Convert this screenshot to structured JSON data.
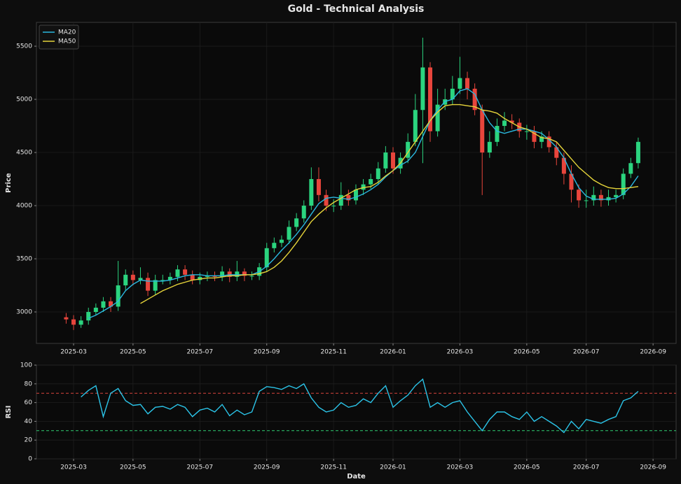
{
  "chart_data": [
    {
      "type": "candlestick",
      "title": "Gold - Technical Analysis",
      "y_label": "Price",
      "categories": [
        null,
        "2025-03",
        null,
        null,
        null,
        null,
        null,
        null,
        null,
        "2025-05",
        null,
        null,
        null,
        null,
        null,
        null,
        null,
        null,
        "2025-07",
        null,
        null,
        null,
        null,
        null,
        null,
        null,
        null,
        "2025-09",
        null,
        null,
        null,
        null,
        null,
        null,
        null,
        null,
        "2025-11",
        null,
        null,
        null,
        null,
        null,
        null,
        null,
        "2026-01",
        null,
        null,
        null,
        null,
        null,
        null,
        null,
        null,
        "2026-03",
        null,
        null,
        null,
        null,
        null,
        null,
        null,
        null,
        "2026-05",
        null,
        null,
        null,
        null,
        null,
        null,
        null,
        "2026-07",
        null,
        null,
        null,
        null,
        null,
        null,
        null,
        null,
        "2026-09"
      ],
      "open": [
        2950,
        2930,
        2880,
        2920,
        3000,
        3040,
        3100,
        3050,
        3250,
        3350,
        3300,
        3320,
        3200,
        3300,
        3300,
        3330,
        3400,
        3350,
        3300,
        3330,
        3340,
        3330,
        3380,
        3330,
        3380,
        3340,
        3340,
        3420,
        3600,
        3650,
        3680,
        3800,
        3880,
        4000,
        4250,
        4100,
        4000,
        4000,
        4100,
        4050,
        4150,
        4200,
        4250,
        4350,
        4500,
        4350,
        4450,
        4600,
        4900,
        5300,
        4700,
        4950,
        5000,
        5100,
        5200,
        5100,
        4900,
        4500,
        4600,
        4750,
        4800,
        4780,
        4700,
        4700,
        4600,
        4650,
        4550,
        4450,
        4300,
        4150,
        4050,
        4050,
        4100,
        4050,
        4080,
        4100,
        4300,
        4400,
        null,
        null
      ],
      "high": [
        2990,
        2970,
        2960,
        3040,
        3080,
        3140,
        3140,
        3480,
        3400,
        3390,
        3420,
        3370,
        3350,
        3350,
        3370,
        3440,
        3440,
        3390,
        3370,
        3380,
        3380,
        3430,
        3410,
        3480,
        3410,
        3380,
        3460,
        3650,
        3700,
        3720,
        3860,
        3930,
        4050,
        4360,
        4360,
        4150,
        4060,
        4220,
        4150,
        4200,
        4250,
        4300,
        4410,
        4560,
        4550,
        4500,
        4680,
        5050,
        5580,
        5350,
        5100,
        5100,
        5220,
        5400,
        5260,
        5150,
        4950,
        4700,
        4820,
        4880,
        4860,
        4820,
        4760,
        4750,
        4700,
        4700,
        4600,
        4500,
        4380,
        4200,
        4150,
        4180,
        4150,
        4150,
        4150,
        4350,
        4450,
        4640,
        null,
        null
      ],
      "low": [
        2890,
        2830,
        2850,
        2880,
        2970,
        3000,
        3000,
        3010,
        3200,
        3250,
        3260,
        3150,
        3160,
        3260,
        3260,
        3290,
        3300,
        3260,
        3260,
        3290,
        3290,
        3290,
        3280,
        3290,
        3290,
        3300,
        3300,
        3380,
        3560,
        3610,
        3640,
        3760,
        3840,
        3960,
        4040,
        3950,
        3940,
        3960,
        4000,
        4010,
        4100,
        4160,
        4200,
        4310,
        4300,
        4300,
        4400,
        4560,
        4400,
        4600,
        4650,
        4900,
        4950,
        5050,
        5000,
        4850,
        4100,
        4450,
        4560,
        4700,
        4720,
        4640,
        4620,
        4540,
        4540,
        4500,
        4380,
        4200,
        4030,
        3980,
        3980,
        4000,
        3990,
        4000,
        4030,
        4060,
        4260,
        4350,
        null,
        null
      ],
      "close": [
        2930,
        2880,
        2920,
        3000,
        3040,
        3100,
        3050,
        3250,
        3350,
        3300,
        3320,
        3200,
        3300,
        3300,
        3330,
        3400,
        3350,
        3300,
        3330,
        3340,
        3330,
        3380,
        3330,
        3380,
        3340,
        3340,
        3420,
        3600,
        3650,
        3680,
        3800,
        3880,
        4000,
        4250,
        4100,
        4000,
        4000,
        4100,
        4050,
        4150,
        4200,
        4250,
        4350,
        4500,
        4350,
        4450,
        4600,
        4900,
        5300,
        4700,
        4950,
        5000,
        5100,
        5200,
        5100,
        4900,
        4500,
        4600,
        4750,
        4800,
        4780,
        4700,
        4700,
        4600,
        4650,
        4550,
        4450,
        4300,
        4150,
        4050,
        4050,
        4100,
        4050,
        4080,
        4100,
        4300,
        4400,
        4600,
        null,
        null
      ],
      "up_color": "#2bd47f",
      "down_color": "#e8453c",
      "series": [
        {
          "name": "MA20",
          "color": "#2bb8e0",
          "values": [
            null,
            null,
            null,
            2940,
            2970,
            3010,
            3050,
            3100,
            3200,
            3260,
            3300,
            3290,
            3290,
            3290,
            3300,
            3320,
            3340,
            3350,
            3350,
            3340,
            3340,
            3340,
            3350,
            3350,
            3350,
            3350,
            3380,
            3430,
            3500,
            3580,
            3650,
            3730,
            3820,
            3920,
            4020,
            4070,
            4080,
            4070,
            4060,
            4080,
            4110,
            4150,
            4200,
            4270,
            4330,
            4380,
            4420,
            4500,
            4650,
            4800,
            4900,
            4980,
            5000,
            5080,
            5100,
            5050,
            4900,
            4780,
            4700,
            4680,
            4700,
            4720,
            4720,
            4700,
            4680,
            4620,
            4550,
            4450,
            4300,
            4170,
            4090,
            4060,
            4060,
            4060,
            4070,
            4110,
            4180,
            4280,
            null,
            null
          ]
        },
        {
          "name": "MA50",
          "color": "#e6d43a",
          "values": [
            null,
            null,
            null,
            null,
            null,
            null,
            null,
            null,
            null,
            null,
            3080,
            3120,
            3160,
            3200,
            3230,
            3260,
            3280,
            3300,
            3310,
            3320,
            3320,
            3330,
            3340,
            3340,
            3350,
            3350,
            3360,
            3380,
            3420,
            3480,
            3560,
            3650,
            3750,
            3850,
            3920,
            3980,
            4030,
            4070,
            4110,
            4150,
            4170,
            4180,
            4220,
            4280,
            4330,
            4400,
            4500,
            4600,
            4700,
            4800,
            4880,
            4940,
            4950,
            4950,
            4940,
            4930,
            4900,
            4890,
            4870,
            4820,
            4780,
            4740,
            4720,
            4680,
            4640,
            4630,
            4600,
            4520,
            4440,
            4360,
            4300,
            4240,
            4200,
            4170,
            4160,
            4160,
            4170,
            4180,
            null,
            null
          ]
        }
      ],
      "ylim": [
        2704,
        5724
      ],
      "yticks": [
        3000,
        3500,
        4000,
        4500,
        5000,
        5500
      ],
      "grid": true,
      "legend": "upper left"
    },
    {
      "type": "line",
      "x_label": "Date",
      "y_label": "RSI",
      "categories": [
        null,
        "2025-03",
        null,
        null,
        null,
        null,
        null,
        null,
        null,
        "2025-05",
        null,
        null,
        null,
        null,
        null,
        null,
        null,
        null,
        "2025-07",
        null,
        null,
        null,
        null,
        null,
        null,
        null,
        null,
        "2025-09",
        null,
        null,
        null,
        null,
        null,
        null,
        null,
        null,
        "2025-11",
        null,
        null,
        null,
        null,
        null,
        null,
        null,
        "2026-01",
        null,
        null,
        null,
        null,
        null,
        null,
        null,
        null,
        "2026-03",
        null,
        null,
        null,
        null,
        null,
        null,
        null,
        null,
        "2026-05",
        null,
        null,
        null,
        null,
        null,
        null,
        null,
        "2026-07",
        null,
        null,
        null,
        null,
        null,
        null,
        null,
        null,
        "2026-09"
      ],
      "color": "#2bc4e8",
      "values": [
        null,
        null,
        66,
        73,
        78,
        45,
        70,
        75,
        62,
        57,
        58,
        48,
        55,
        56,
        53,
        58,
        55,
        45,
        52,
        54,
        50,
        58,
        46,
        52,
        47,
        50,
        72,
        77,
        76,
        74,
        78,
        75,
        80,
        65,
        55,
        50,
        52,
        60,
        55,
        57,
        64,
        60,
        70,
        78,
        55,
        62,
        68,
        78,
        85,
        55,
        60,
        55,
        60,
        62,
        50,
        40,
        30,
        42,
        50,
        50,
        45,
        42,
        50,
        40,
        45,
        40,
        35,
        28,
        40,
        32,
        42,
        40,
        38,
        42,
        45,
        62,
        65,
        72,
        null,
        null
      ],
      "reference_lines": [
        {
          "value": 70,
          "color": "#d9453c"
        },
        {
          "value": 30,
          "color": "#2ecc71"
        }
      ],
      "ylim": [
        0,
        100
      ],
      "yticks": [
        0,
        20,
        40,
        60,
        80,
        100
      ],
      "grid": true
    }
  ]
}
